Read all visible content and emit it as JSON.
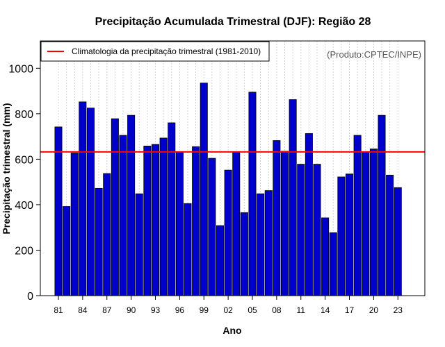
{
  "chart_data": {
    "type": "bar",
    "title": "Precipitação Acumulada Trimestral (DJF): Região 28",
    "xlabel": "Ano",
    "ylabel": "Precipitação trimestral (mm)",
    "credit": "(Produto:CPTEC/INPE)",
    "ylim": [
      0,
      1120
    ],
    "yticks": [
      0,
      200,
      400,
      600,
      800,
      1000
    ],
    "years": [
      1981,
      1982,
      1983,
      1984,
      1985,
      1986,
      1987,
      1988,
      1989,
      1990,
      1991,
      1992,
      1993,
      1994,
      1995,
      1996,
      1997,
      1998,
      1999,
      2000,
      2001,
      2002,
      2003,
      2004,
      2005,
      2006,
      2007,
      2008,
      2009,
      2010,
      2011,
      2012,
      2013,
      2014,
      2015,
      2016,
      2017,
      2018,
      2019,
      2020,
      2021,
      2022,
      2023
    ],
    "xtick_labels": [
      "81",
      "84",
      "87",
      "90",
      "93",
      "96",
      "99",
      "02",
      "05",
      "08",
      "11",
      "14",
      "17",
      "20",
      "23"
    ],
    "xtick_years": [
      1981,
      1984,
      1987,
      1990,
      1993,
      1996,
      1999,
      2002,
      2005,
      2008,
      2011,
      2014,
      2017,
      2020,
      2023
    ],
    "values": [
      742,
      392,
      627,
      852,
      825,
      472,
      537,
      778,
      705,
      793,
      448,
      658,
      665,
      693,
      760,
      632,
      405,
      655,
      935,
      604,
      308,
      552,
      632,
      365,
      895,
      448,
      462,
      682,
      635,
      862,
      578,
      713,
      578,
      342,
      277,
      522,
      535,
      705,
      630,
      645,
      793,
      530,
      475
    ],
    "climatology": {
      "label": "Climatologia da precipitação trimestral (1981-2010)",
      "value": 632,
      "color": "#ff0000"
    },
    "colors": {
      "bar_fill": "#0000cc",
      "bar_stroke": "#000000",
      "grid": "#d3d3d3"
    },
    "grid": true,
    "legend_position": "top-left"
  }
}
